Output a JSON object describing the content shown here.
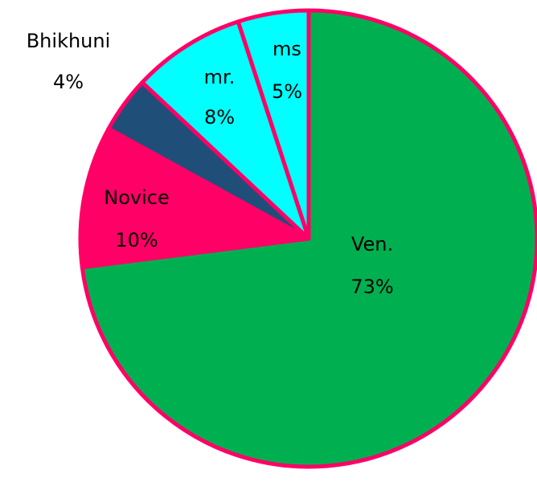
{
  "chart_data": {
    "type": "pie",
    "categories": [
      "Ven.",
      "Novice",
      "Bhikhuni",
      "mr.",
      "ms"
    ],
    "values": [
      73,
      10,
      4,
      8,
      5
    ],
    "value_labels": [
      "73%",
      "10%",
      "4%",
      "8%",
      "5%"
    ],
    "colors": [
      "#00b050",
      "#ff0066",
      "#1f4e79",
      "#00ffff",
      "#00ffff"
    ],
    "edge_color": "#ff0066"
  }
}
